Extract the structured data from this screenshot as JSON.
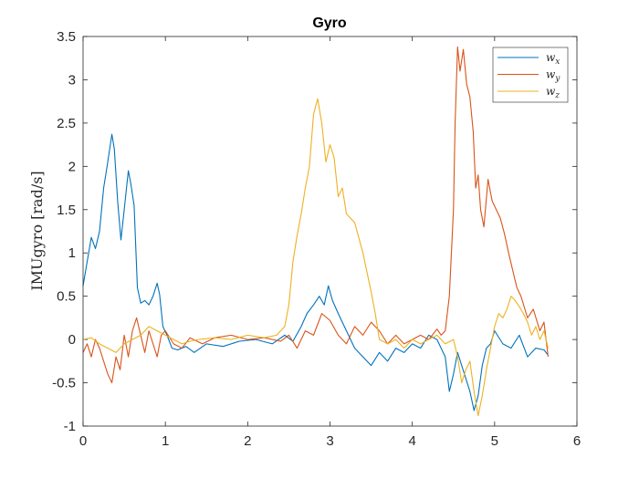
{
  "chart_data": {
    "type": "line",
    "title": "Gyro",
    "xlabel": "",
    "ylabel": "IMUgyro [rad/s]",
    "xlim": [
      0,
      6
    ],
    "ylim": [
      -1,
      3.5
    ],
    "x_ticks": [
      0,
      1,
      2,
      3,
      4,
      5,
      6
    ],
    "y_ticks": [
      -1,
      -0.5,
      0,
      0.5,
      1,
      1.5,
      2,
      2.5,
      3,
      3.5
    ],
    "x_tick_labels": [
      "0",
      "1",
      "2",
      "3",
      "4",
      "5",
      "6"
    ],
    "y_tick_labels": [
      "-1",
      "-0.5",
      "0",
      "0.5",
      "1",
      "1.5",
      "2",
      "2.5",
      "3",
      "3.5"
    ],
    "grid": false,
    "legend_position": "top-right",
    "series": [
      {
        "name": "w_x",
        "label_main": "w",
        "label_sub": "x",
        "color": "#0072BD",
        "x": [
          0,
          0.05,
          0.1,
          0.15,
          0.2,
          0.25,
          0.3,
          0.35,
          0.38,
          0.42,
          0.46,
          0.5,
          0.55,
          0.58,
          0.62,
          0.66,
          0.7,
          0.75,
          0.8,
          0.85,
          0.9,
          0.93,
          0.97,
          1.02,
          1.08,
          1.15,
          1.25,
          1.35,
          1.5,
          1.7,
          1.9,
          2.1,
          2.3,
          2.45,
          2.55,
          2.65,
          2.72,
          2.8,
          2.87,
          2.93,
          2.98,
          3.03,
          3.1,
          3.2,
          3.3,
          3.4,
          3.5,
          3.6,
          3.7,
          3.8,
          3.9,
          4.0,
          4.1,
          4.2,
          4.3,
          4.4,
          4.45,
          4.5,
          4.55,
          4.6,
          4.65,
          4.7,
          4.75,
          4.8,
          4.85,
          4.9,
          4.95,
          5.0,
          5.1,
          5.2,
          5.3,
          5.4,
          5.5,
          5.6,
          5.65
        ],
        "y": [
          0.62,
          0.9,
          1.18,
          1.05,
          1.25,
          1.75,
          2.05,
          2.37,
          2.2,
          1.6,
          1.15,
          1.5,
          1.95,
          1.8,
          1.55,
          0.6,
          0.42,
          0.45,
          0.4,
          0.5,
          0.65,
          0.52,
          0.15,
          0.05,
          -0.1,
          -0.12,
          -0.08,
          -0.15,
          -0.05,
          -0.08,
          -0.02,
          0.0,
          -0.05,
          0.05,
          -0.02,
          0.15,
          0.3,
          0.4,
          0.5,
          0.4,
          0.62,
          0.45,
          0.3,
          0.1,
          -0.1,
          -0.2,
          -0.3,
          -0.15,
          -0.25,
          -0.1,
          -0.15,
          -0.05,
          -0.1,
          0.05,
          0.0,
          -0.2,
          -0.6,
          -0.4,
          -0.15,
          -0.3,
          -0.45,
          -0.6,
          -0.82,
          -0.65,
          -0.3,
          -0.1,
          -0.05,
          0.1,
          -0.05,
          -0.1,
          0.05,
          -0.2,
          -0.1,
          -0.12,
          -0.18
        ]
      },
      {
        "name": "w_y",
        "label_main": "w",
        "label_sub": "y",
        "color": "#D95319",
        "x": [
          0,
          0.05,
          0.1,
          0.15,
          0.2,
          0.25,
          0.3,
          0.35,
          0.4,
          0.45,
          0.5,
          0.55,
          0.6,
          0.65,
          0.7,
          0.75,
          0.8,
          0.85,
          0.9,
          0.95,
          1.0,
          1.1,
          1.2,
          1.3,
          1.45,
          1.6,
          1.8,
          2.0,
          2.2,
          2.4,
          2.5,
          2.6,
          2.7,
          2.8,
          2.9,
          3.0,
          3.1,
          3.2,
          3.3,
          3.4,
          3.5,
          3.6,
          3.7,
          3.8,
          3.9,
          4.0,
          4.1,
          4.2,
          4.3,
          4.35,
          4.4,
          4.45,
          4.5,
          4.52,
          4.55,
          4.58,
          4.62,
          4.66,
          4.7,
          4.74,
          4.77,
          4.8,
          4.83,
          4.87,
          4.92,
          4.97,
          5.02,
          5.07,
          5.12,
          5.17,
          5.22,
          5.27,
          5.32,
          5.4,
          5.47,
          5.55,
          5.6,
          5.65
        ],
        "y": [
          -0.15,
          -0.05,
          -0.2,
          0.0,
          -0.1,
          -0.25,
          -0.4,
          -0.5,
          -0.2,
          -0.35,
          0.05,
          -0.2,
          0.1,
          0.25,
          0.05,
          -0.15,
          0.1,
          -0.05,
          -0.2,
          0.05,
          0.1,
          -0.05,
          -0.1,
          0.02,
          -0.05,
          0.02,
          0.05,
          0.0,
          0.02,
          -0.02,
          0.05,
          -0.1,
          0.1,
          0.05,
          0.3,
          0.22,
          0.05,
          -0.05,
          0.15,
          0.05,
          0.2,
          0.1,
          -0.05,
          0.05,
          -0.05,
          0.0,
          0.05,
          0.0,
          0.12,
          0.05,
          0.1,
          0.5,
          1.5,
          2.5,
          3.38,
          3.1,
          3.35,
          2.95,
          2.8,
          2.4,
          1.75,
          1.9,
          1.5,
          1.3,
          1.85,
          1.6,
          1.5,
          1.4,
          1.22,
          1.0,
          0.8,
          0.6,
          0.5,
          0.25,
          0.35,
          0.1,
          0.2,
          -0.2
        ]
      },
      {
        "name": "w_z",
        "label_main": "w",
        "label_sub": "z",
        "color": "#EDB120",
        "x": [
          0,
          0.1,
          0.2,
          0.3,
          0.4,
          0.5,
          0.6,
          0.7,
          0.8,
          0.9,
          1.0,
          1.1,
          1.2,
          1.3,
          1.4,
          1.6,
          1.8,
          2.0,
          2.2,
          2.35,
          2.45,
          2.5,
          2.55,
          2.6,
          2.65,
          2.7,
          2.75,
          2.8,
          2.85,
          2.9,
          2.95,
          3.0,
          3.05,
          3.1,
          3.15,
          3.2,
          3.3,
          3.4,
          3.5,
          3.55,
          3.6,
          3.7,
          3.8,
          3.9,
          4.0,
          4.1,
          4.2,
          4.3,
          4.4,
          4.5,
          4.55,
          4.6,
          4.65,
          4.7,
          4.75,
          4.8,
          4.85,
          4.9,
          4.95,
          5.0,
          5.05,
          5.1,
          5.15,
          5.2,
          5.25,
          5.3,
          5.35,
          5.4,
          5.45,
          5.5,
          5.55,
          5.6,
          5.65
        ],
        "y": [
          0.0,
          0.02,
          -0.05,
          -0.1,
          -0.15,
          -0.05,
          0.0,
          0.05,
          0.15,
          0.1,
          0.05,
          0.0,
          -0.05,
          -0.02,
          0.0,
          0.02,
          0.0,
          0.05,
          0.02,
          0.05,
          0.15,
          0.4,
          0.9,
          1.2,
          1.45,
          1.75,
          2.0,
          2.6,
          2.78,
          2.5,
          2.05,
          2.25,
          2.1,
          1.65,
          1.75,
          1.45,
          1.35,
          1.0,
          0.55,
          0.3,
          0.0,
          -0.05,
          0.0,
          -0.1,
          0.0,
          -0.05,
          0.0,
          0.05,
          -0.05,
          0.0,
          -0.2,
          -0.5,
          -0.35,
          -0.25,
          -0.6,
          -0.88,
          -0.65,
          -0.35,
          -0.1,
          0.15,
          0.3,
          0.25,
          0.35,
          0.5,
          0.45,
          0.38,
          0.3,
          0.2,
          0.05,
          0.15,
          0.0,
          0.1,
          -0.1
        ]
      }
    ]
  }
}
